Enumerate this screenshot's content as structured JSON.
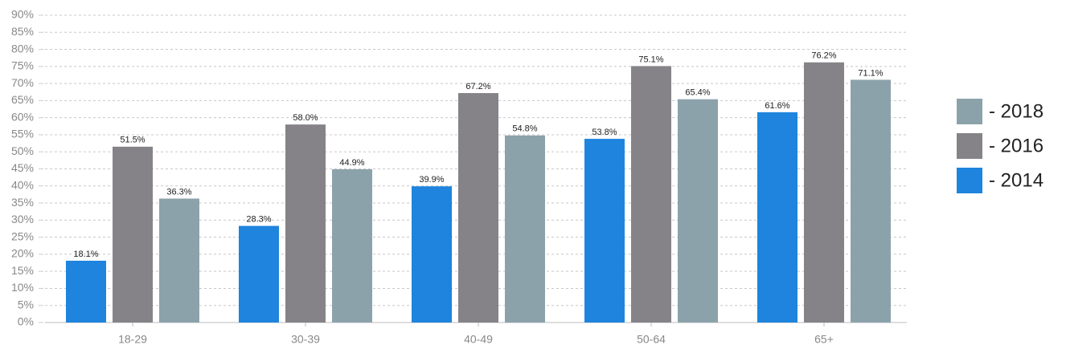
{
  "chart_data": {
    "type": "bar",
    "categories": [
      "18-29",
      "30-39",
      "40-49",
      "50-64",
      "65+"
    ],
    "series": [
      {
        "name": "- 2014",
        "color": "#1e84dd",
        "values": [
          18.1,
          28.3,
          39.9,
          53.8,
          61.6
        ],
        "value_labels": [
          "18.1%",
          "28.3%",
          "39.9%",
          "53.8%",
          "61.6%"
        ]
      },
      {
        "name": "- 2016",
        "color": "#858388",
        "values": [
          51.5,
          58.0,
          67.2,
          75.1,
          76.2
        ],
        "value_labels": [
          "51.5%",
          "58.0%",
          "67.2%",
          "75.1%",
          "76.2%"
        ]
      },
      {
        "name": "- 2018",
        "color": "#8ca2ab",
        "values": [
          36.3,
          44.9,
          54.8,
          65.4,
          71.1
        ],
        "value_labels": [
          "36.3%",
          "44.9%",
          "54.8%",
          "65.4%",
          "71.1%"
        ]
      }
    ],
    "ylim": [
      0,
      90
    ],
    "yticks": [
      {
        "value": 0,
        "label": "0%"
      },
      {
        "value": 5,
        "label": "5%"
      },
      {
        "value": 10,
        "label": "10%"
      },
      {
        "value": 15,
        "label": "15%"
      },
      {
        "value": 20,
        "label": "20%"
      },
      {
        "value": 25,
        "label": "25%"
      },
      {
        "value": 30,
        "label": "30%"
      },
      {
        "value": 35,
        "label": "35%"
      },
      {
        "value": 40,
        "label": "40%"
      },
      {
        "value": 45,
        "label": "45%"
      },
      {
        "value": 50,
        "label": "50%"
      },
      {
        "value": 55,
        "label": "55%"
      },
      {
        "value": 60,
        "label": "60%"
      },
      {
        "value": 65,
        "label": "65%"
      },
      {
        "value": 70,
        "label": "70%"
      },
      {
        "value": 75,
        "label": "75%"
      },
      {
        "value": 80,
        "label": "80%"
      },
      {
        "value": 85,
        "label": "85%"
      },
      {
        "value": 90,
        "label": "90%"
      }
    ],
    "grid": true,
    "legend": "right"
  }
}
